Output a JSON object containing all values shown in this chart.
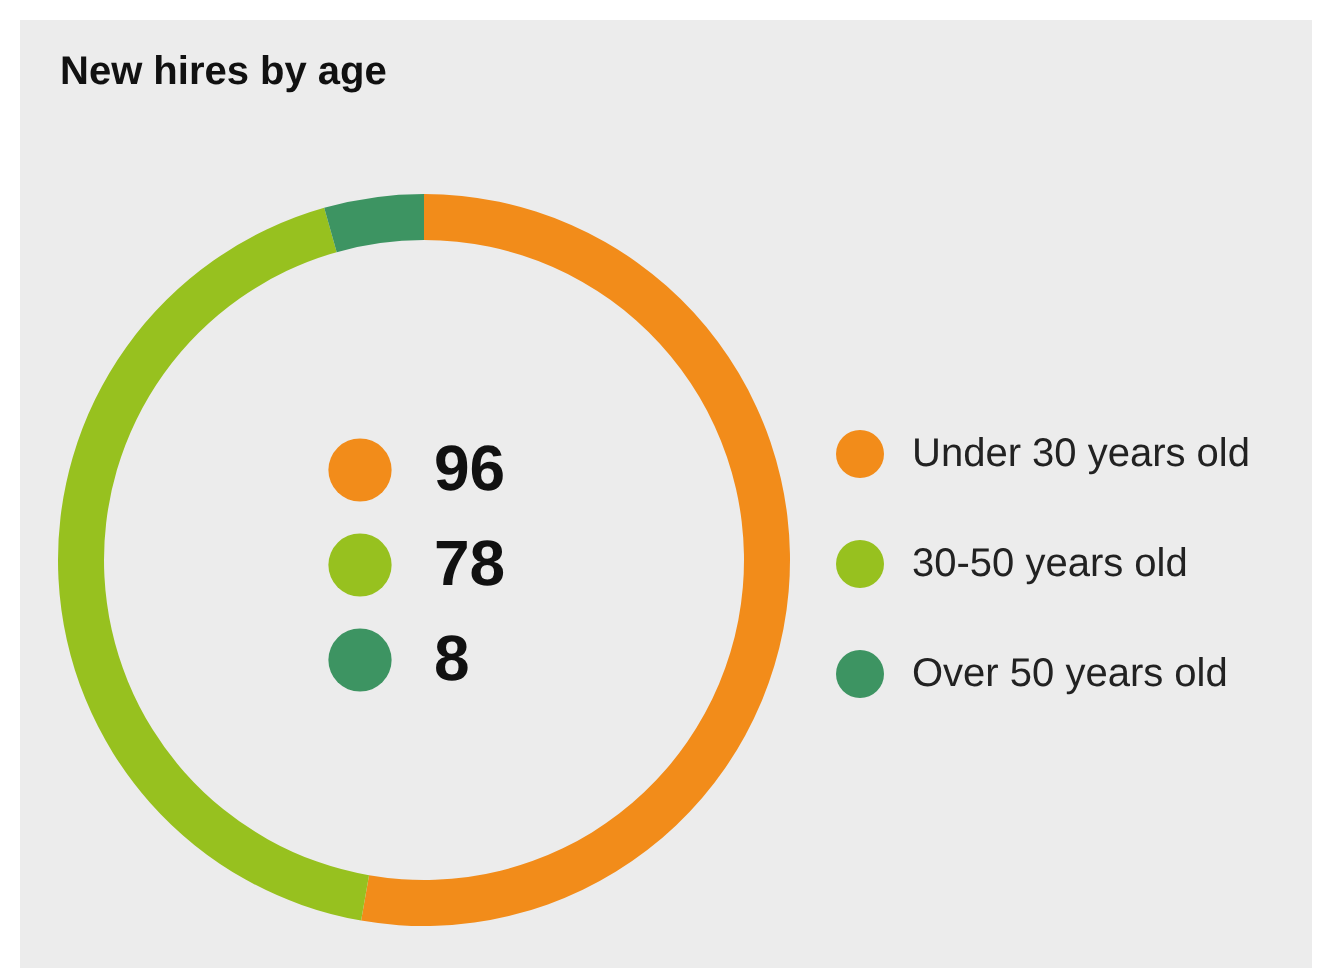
{
  "chart_data": {
    "type": "donut",
    "title": "New hires by age",
    "categories": [
      "Under 30 years old",
      "30-50 years old",
      "Over 50 years old"
    ],
    "values": [
      96,
      78,
      8
    ],
    "colors": [
      "#f28c1a",
      "#97c11f",
      "#3d9462"
    ],
    "legend": "right",
    "data_labels": true
  }
}
